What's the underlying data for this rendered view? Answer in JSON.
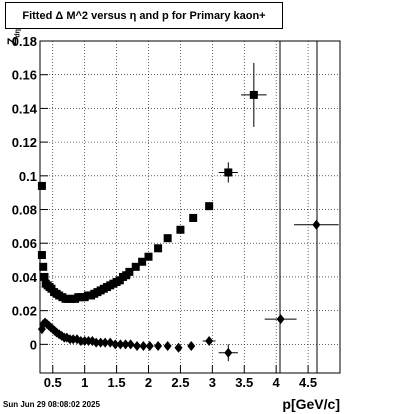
{
  "chart_data": {
    "type": "scatter",
    "title": "Fitted Δ M^2 versus η and p for Primary kaon+",
    "xlabel": "p[GeV/c]",
    "ylabel": "Z",
    "ylabel_sub": "dη",
    "xlim": [
      0.3,
      5.0
    ],
    "ylim": [
      -0.017,
      0.18
    ],
    "grid": true,
    "x_ticks": [
      0.5,
      1,
      1.5,
      2,
      2.5,
      3,
      3.5,
      4,
      4.5
    ],
    "x_tick_labels": [
      "0.5",
      "1",
      "1.5",
      "2",
      "2.5",
      "3",
      "3.5",
      "4",
      "4.5"
    ],
    "y_ticks": [
      0,
      0.02,
      0.04,
      0.06,
      0.08,
      0.1,
      0.12,
      0.14,
      0.16,
      0.18
    ],
    "y_tick_labels": [
      "0",
      "0.02",
      "0.04",
      "0.06",
      "0.08",
      "0.1",
      "0.12",
      "0.14",
      "0.16",
      "0.18"
    ],
    "series": [
      {
        "marker": "square",
        "points": [
          {
            "x": 0.33,
            "y": 0.094
          },
          {
            "x": 0.33,
            "y": 0.053
          },
          {
            "x": 0.35,
            "y": 0.046
          },
          {
            "x": 0.37,
            "y": 0.04
          },
          {
            "x": 0.39,
            "y": 0.036
          },
          {
            "x": 0.42,
            "y": 0.035
          },
          {
            "x": 0.45,
            "y": 0.034
          },
          {
            "x": 0.48,
            "y": 0.033
          },
          {
            "x": 0.52,
            "y": 0.031
          },
          {
            "x": 0.56,
            "y": 0.03
          },
          {
            "x": 0.6,
            "y": 0.029
          },
          {
            "x": 0.65,
            "y": 0.028
          },
          {
            "x": 0.7,
            "y": 0.027
          },
          {
            "x": 0.75,
            "y": 0.027
          },
          {
            "x": 0.8,
            "y": 0.027
          },
          {
            "x": 0.85,
            "y": 0.027
          },
          {
            "x": 0.9,
            "y": 0.028
          },
          {
            "x": 0.95,
            "y": 0.028
          },
          {
            "x": 1.0,
            "y": 0.028
          },
          {
            "x": 1.05,
            "y": 0.029
          },
          {
            "x": 1.1,
            "y": 0.029
          },
          {
            "x": 1.15,
            "y": 0.03
          },
          {
            "x": 1.2,
            "y": 0.031
          },
          {
            "x": 1.25,
            "y": 0.032
          },
          {
            "x": 1.3,
            "y": 0.033
          },
          {
            "x": 1.35,
            "y": 0.034
          },
          {
            "x": 1.4,
            "y": 0.035
          },
          {
            "x": 1.45,
            "y": 0.036
          },
          {
            "x": 1.5,
            "y": 0.037
          },
          {
            "x": 1.55,
            "y": 0.038
          },
          {
            "x": 1.6,
            "y": 0.04
          },
          {
            "x": 1.65,
            "y": 0.041
          },
          {
            "x": 1.7,
            "y": 0.043
          },
          {
            "x": 1.8,
            "y": 0.046
          },
          {
            "x": 1.9,
            "y": 0.049
          },
          {
            "x": 2.0,
            "y": 0.052
          },
          {
            "x": 2.15,
            "y": 0.057
          },
          {
            "x": 2.3,
            "y": 0.063
          },
          {
            "x": 2.5,
            "y": 0.068
          },
          {
            "x": 2.7,
            "y": 0.075
          },
          {
            "x": 2.95,
            "y": 0.082
          },
          {
            "x": 3.25,
            "y": 0.102,
            "xerr": 0.15,
            "yerr": 0.006
          },
          {
            "x": 3.65,
            "y": 0.148,
            "xerr": 0.2,
            "yerr": 0.019
          }
        ]
      },
      {
        "marker": "diamond",
        "points": [
          {
            "x": 0.33,
            "y": 0.009
          },
          {
            "x": 0.35,
            "y": 0.012
          },
          {
            "x": 0.38,
            "y": 0.013
          },
          {
            "x": 0.41,
            "y": 0.012
          },
          {
            "x": 0.44,
            "y": 0.011
          },
          {
            "x": 0.47,
            "y": 0.01
          },
          {
            "x": 0.5,
            "y": 0.009
          },
          {
            "x": 0.53,
            "y": 0.008
          },
          {
            "x": 0.56,
            "y": 0.007
          },
          {
            "x": 0.6,
            "y": 0.006
          },
          {
            "x": 0.64,
            "y": 0.005
          },
          {
            "x": 0.68,
            "y": 0.004
          },
          {
            "x": 0.72,
            "y": 0.004
          },
          {
            "x": 0.77,
            "y": 0.003
          },
          {
            "x": 0.82,
            "y": 0.003
          },
          {
            "x": 0.88,
            "y": 0.003
          },
          {
            "x": 0.94,
            "y": 0.002
          },
          {
            "x": 1.0,
            "y": 0.002
          },
          {
            "x": 1.06,
            "y": 0.002
          },
          {
            "x": 1.12,
            "y": 0.002
          },
          {
            "x": 1.18,
            "y": 0.001
          },
          {
            "x": 1.25,
            "y": 0.001
          },
          {
            "x": 1.32,
            "y": 0.001
          },
          {
            "x": 1.4,
            "y": 0.001
          },
          {
            "x": 1.48,
            "y": 0.0
          },
          {
            "x": 1.56,
            "y": 0.0
          },
          {
            "x": 1.64,
            "y": 0.0
          },
          {
            "x": 1.72,
            "y": 0.0
          },
          {
            "x": 1.82,
            "y": -0.001
          },
          {
            "x": 1.92,
            "y": -0.001
          },
          {
            "x": 2.02,
            "y": -0.001
          },
          {
            "x": 2.15,
            "y": -0.001
          },
          {
            "x": 2.3,
            "y": -0.001
          },
          {
            "x": 2.47,
            "y": -0.002
          },
          {
            "x": 2.67,
            "y": -0.001
          },
          {
            "x": 2.95,
            "y": 0.002,
            "xerr": 0.1
          },
          {
            "x": 3.25,
            "y": -0.005,
            "xerr": 0.15,
            "yerr": 0.005
          },
          {
            "x": 4.07,
            "y": 0.015,
            "xerr": 0.25
          },
          {
            "x": 4.63,
            "y": 0.071,
            "xerr": 0.35
          }
        ]
      }
    ]
  },
  "footer": {
    "date": "Sun Jun 29 08:08:02 2025"
  }
}
